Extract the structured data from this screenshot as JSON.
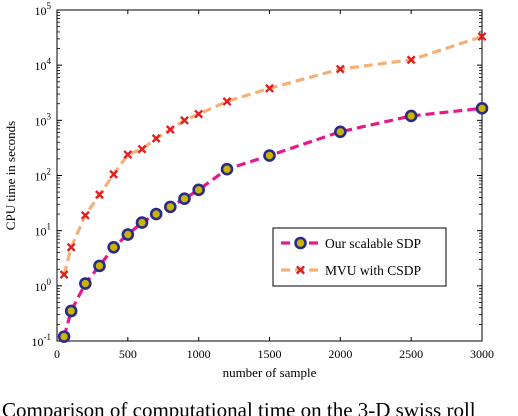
{
  "chart_data": {
    "type": "line",
    "xlabel": "number of sample",
    "ylabel": "CPU time in seconds",
    "xlim": [
      0,
      3000
    ],
    "ylim": [
      0.1,
      100000
    ],
    "yscale": "log",
    "grid": false,
    "legend_position": "lower-right",
    "x_ticks": [
      "0",
      "500",
      "1000",
      "1500",
      "2000",
      "2500",
      "3000"
    ],
    "y_ticks": [
      {
        "base": "10",
        "exp": "-1"
      },
      {
        "base": "10",
        "exp": "0"
      },
      {
        "base": "10",
        "exp": "1"
      },
      {
        "base": "10",
        "exp": "2"
      },
      {
        "base": "10",
        "exp": "3"
      },
      {
        "base": "10",
        "exp": "4"
      },
      {
        "base": "10",
        "exp": "5"
      }
    ],
    "series": [
      {
        "name": "Our scalable SDP",
        "color": "#e6198c",
        "marker": "circle",
        "marker_edge": "#2a2a8a",
        "marker_face": "#c9b400",
        "x": [
          50,
          100,
          200,
          300,
          400,
          500,
          600,
          700,
          800,
          900,
          1000,
          1200,
          1500,
          2000,
          2500,
          3000
        ],
        "y": [
          0.12,
          0.35,
          1.1,
          2.3,
          5.0,
          8.5,
          14,
          20,
          27,
          38,
          55,
          130,
          230,
          620,
          1200,
          1650
        ]
      },
      {
        "name": "MVU with CSDP",
        "color": "#f5b078",
        "marker": "x",
        "marker_color": "#e02020",
        "x": [
          50,
          100,
          200,
          300,
          400,
          500,
          600,
          700,
          800,
          900,
          1000,
          1200,
          1500,
          2000,
          2500,
          3000
        ],
        "y": [
          1.6,
          5.0,
          19,
          45,
          105,
          240,
          300,
          470,
          680,
          1000,
          1300,
          2200,
          3800,
          8500,
          12500,
          33000
        ]
      }
    ]
  },
  "caption": "Comparison of computational time on the 3-D swiss roll"
}
